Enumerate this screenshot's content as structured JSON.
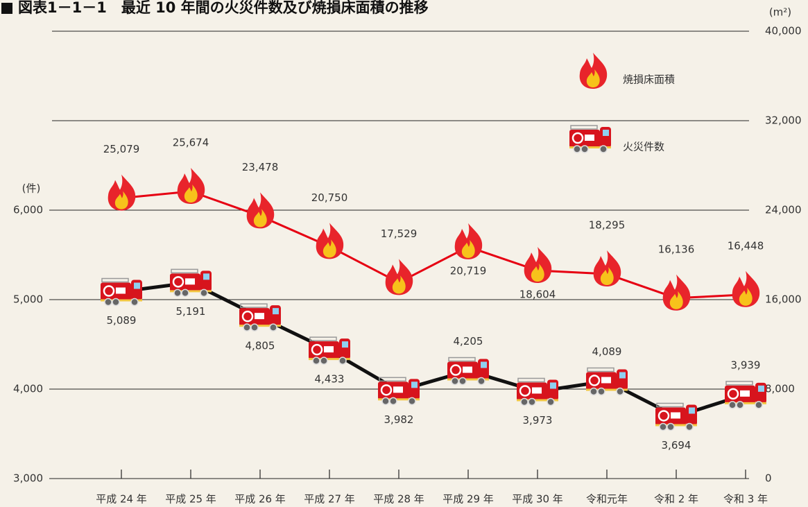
{
  "chart_data": {
    "type": "line",
    "title": "図表1－1－1　最近 10 年間の火災件数及び焼損床面積の推移",
    "y_label": "(件)",
    "y2_label": "(m²)",
    "categories": [
      "平成 24 年",
      "平成 25 年",
      "平成 26 年",
      "平成 27 年",
      "平成 28 年",
      "平成 29 年",
      "平成 30 年",
      "令和元年",
      "令和 2 年",
      "令和 3 年"
    ],
    "ylim": [
      3000,
      8000
    ],
    "yticks": [
      {
        "value": 3000,
        "label": "3,000"
      },
      {
        "value": 4000,
        "label": "4,000"
      },
      {
        "value": 5000,
        "label": "5,000"
      },
      {
        "value": 6000,
        "label": "6,000"
      }
    ],
    "y2lim": [
      0,
      40000
    ],
    "y2ticks": [
      0,
      {
        "value": 8000,
        "label": "8,000"
      },
      {
        "value": 16000,
        "label": "16,000"
      },
      {
        "value": 24000,
        "label": "24,000"
      },
      {
        "value": 32000,
        "label": "32,000"
      },
      {
        "value": 40000,
        "label": "40,000"
      }
    ],
    "grid": true,
    "series": [
      {
        "name": "焼損床面積",
        "color": "#e60012",
        "axis": "y2",
        "values": [
          25079,
          25674,
          23478,
          20750,
          17529,
          20719,
          18604,
          18295,
          16136,
          16448
        ],
        "value_labels": [
          "25,079",
          "25,674",
          "23,478",
          "20,750",
          "17,529",
          "20,719",
          "18,604",
          "18,295",
          "16,136",
          "16,448"
        ]
      },
      {
        "name": "火災件数",
        "color": "#111111",
        "values": [
          5089,
          5191,
          4805,
          4433,
          3982,
          4205,
          3973,
          4089,
          3694,
          3939
        ],
        "value_labels": [
          "5,089",
          "5,191",
          "4,805",
          "4,433",
          "3,982",
          "4,205",
          "3,973",
          "4,089",
          "3,694",
          "3,939"
        ]
      }
    ]
  }
}
